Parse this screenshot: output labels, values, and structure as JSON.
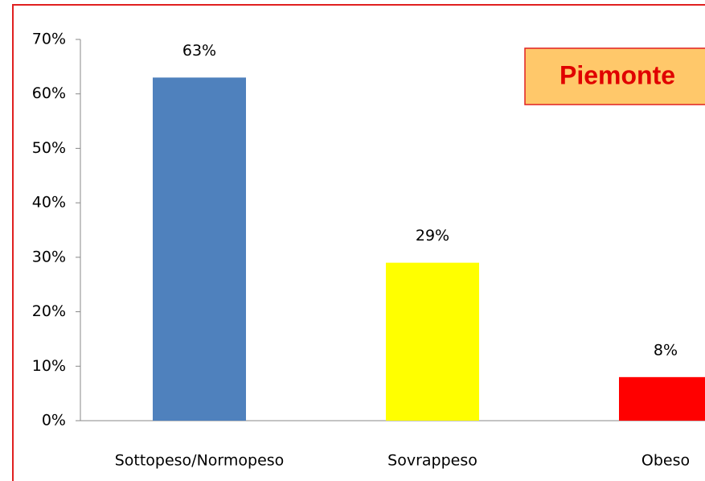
{
  "chart_data": {
    "type": "bar",
    "annotation": "Piemonte",
    "categories": [
      "Sottopeso/Normopeso",
      "Sovrappeso",
      "Obeso"
    ],
    "values": [
      63,
      29,
      8
    ],
    "value_labels": [
      "63%",
      "29%",
      "8%"
    ],
    "colors": [
      "#4f81bd",
      "#ffff00",
      "#ff0000"
    ],
    "ylim": [
      0,
      70
    ],
    "yticks": [
      {
        "value": 0,
        "label": "0%"
      },
      {
        "value": 10,
        "label": "10%"
      },
      {
        "value": 20,
        "label": "20%"
      },
      {
        "value": 30,
        "label": "30%"
      },
      {
        "value": 40,
        "label": "40%"
      },
      {
        "value": 50,
        "label": "50%"
      },
      {
        "value": 60,
        "label": "60%"
      },
      {
        "value": 70,
        "label": "70%"
      }
    ],
    "grid": false
  }
}
